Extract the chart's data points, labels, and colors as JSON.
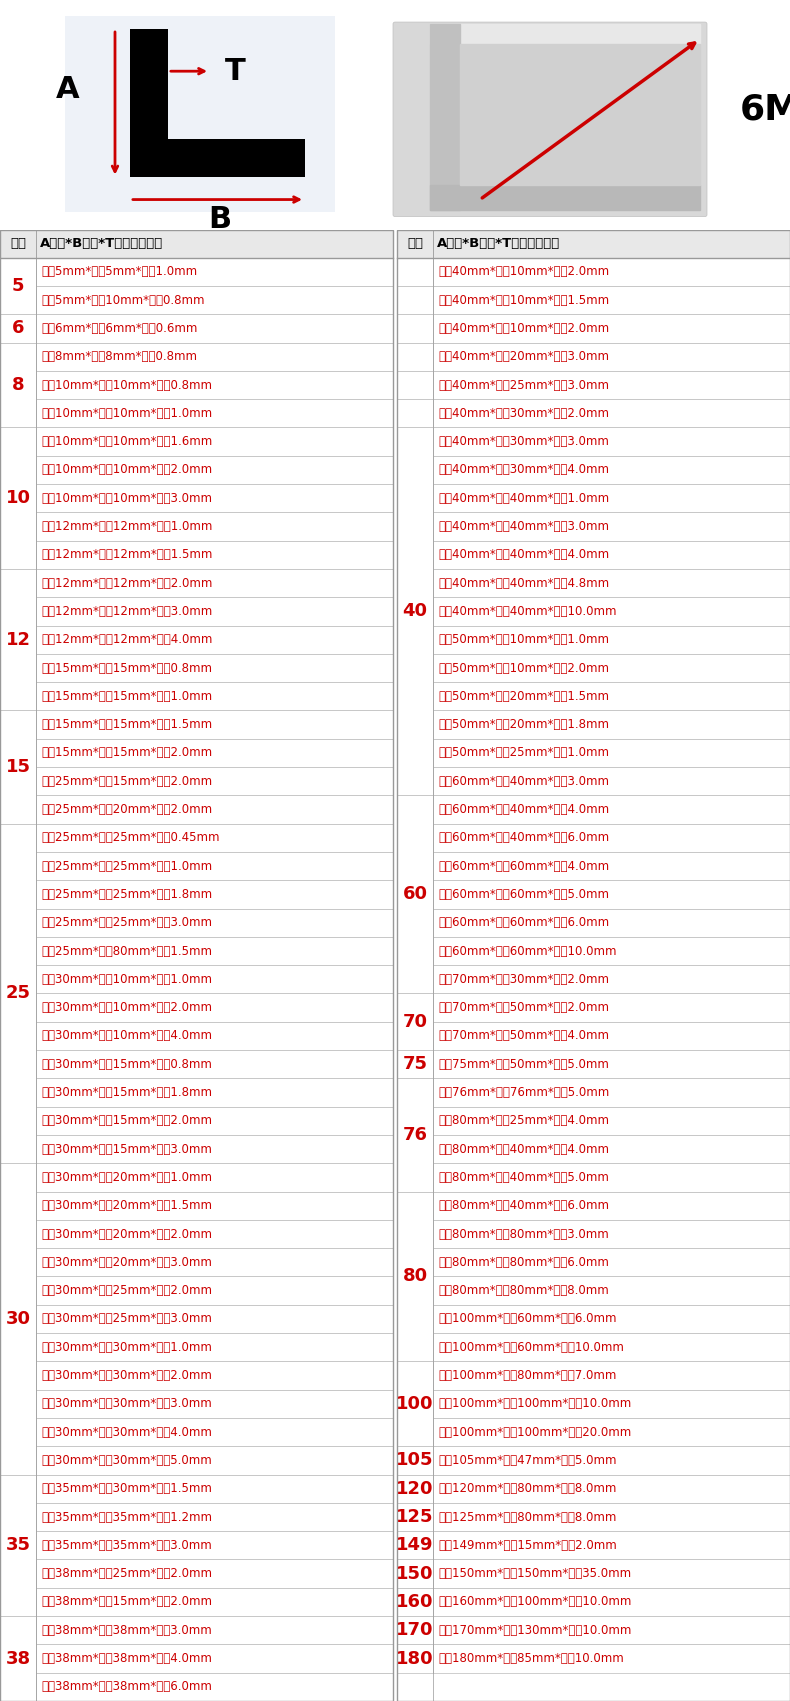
{
  "header_col1": "规格",
  "header_col2": "A边长*B边长*T壁厚（毫米）",
  "header_col3": "规格",
  "header_col4": "A边长*B边长*T壁厚（毫米）",
  "left_table": [
    [
      "5",
      "边长5mm*边长5mm*壁厚1.0mm"
    ],
    [
      "",
      "边长5mm*边长10mm*壁厚0.8mm"
    ],
    [
      "6",
      "边长6mm*边长6mm*壁厚0.6mm"
    ],
    [
      "8",
      "边长8mm*边长8mm*壁厚0.8mm"
    ],
    [
      "",
      "边长10mm*边长10mm*壁厚0.8mm"
    ],
    [
      "",
      "边长10mm*边长10mm*壁厚1.0mm"
    ],
    [
      "10",
      "边长10mm*边长10mm*壁厚1.6mm"
    ],
    [
      "",
      "边长10mm*边长10mm*壁厚2.0mm"
    ],
    [
      "",
      "边长10mm*边长10mm*壁厚3.0mm"
    ],
    [
      "",
      "边长12mm*边长12mm*壁厚1.0mm"
    ],
    [
      "",
      "边长12mm*边长12mm*壁厚1.5mm"
    ],
    [
      "12",
      "边长12mm*边长12mm*壁厚2.0mm"
    ],
    [
      "",
      "边长12mm*边长12mm*壁厚3.0mm"
    ],
    [
      "",
      "边长12mm*边长12mm*壁厚4.0mm"
    ],
    [
      "",
      "边长15mm*边长15mm*壁厚0.8mm"
    ],
    [
      "",
      "边长15mm*边长15mm*壁厚1.0mm"
    ],
    [
      "15",
      "边长15mm*边长15mm*壁厚1.5mm"
    ],
    [
      "",
      "边长15mm*边长15mm*壁厚2.0mm"
    ],
    [
      "",
      "边长25mm*边长15mm*壁厚2.0mm"
    ],
    [
      "",
      "边长25mm*边长20mm*壁厚2.0mm"
    ],
    [
      "25",
      "边长25mm*边长25mm*壁厚0.45mm"
    ],
    [
      "",
      "边长25mm*边长25mm*壁厚1.0mm"
    ],
    [
      "",
      "边长25mm*边长25mm*壁厚1.8mm"
    ],
    [
      "",
      "边长25mm*边长25mm*壁厚3.0mm"
    ],
    [
      "",
      "边长25mm*边长80mm*壁厚1.5mm"
    ],
    [
      "",
      "边长30mm*边长10mm*壁厚1.0mm"
    ],
    [
      "",
      "边长30mm*边长10mm*壁厚2.0mm"
    ],
    [
      "",
      "边长30mm*边长10mm*壁厚4.0mm"
    ],
    [
      "",
      "边长30mm*边长15mm*壁厚0.8mm"
    ],
    [
      "",
      "边长30mm*边长15mm*壁厚1.8mm"
    ],
    [
      "",
      "边长30mm*边长15mm*壁厚2.0mm"
    ],
    [
      "",
      "边长30mm*边长15mm*壁厚3.0mm"
    ],
    [
      "30",
      "边长30mm*边长20mm*壁厚1.0mm"
    ],
    [
      "",
      "边长30mm*边长20mm*壁厚1.5mm"
    ],
    [
      "",
      "边长30mm*边长20mm*壁厚2.0mm"
    ],
    [
      "",
      "边长30mm*边长20mm*壁厚3.0mm"
    ],
    [
      "",
      "边长30mm*边长25mm*壁厚2.0mm"
    ],
    [
      "",
      "边长30mm*边长25mm*壁厚3.0mm"
    ],
    [
      "",
      "边长30mm*边长30mm*壁厚1.0mm"
    ],
    [
      "",
      "边长30mm*边长30mm*壁厚2.0mm"
    ],
    [
      "",
      "边长30mm*边长30mm*壁厚3.0mm"
    ],
    [
      "",
      "边长30mm*边长30mm*壁厚4.0mm"
    ],
    [
      "",
      "边长30mm*边长30mm*壁厚5.0mm"
    ],
    [
      "35",
      "边长35mm*边长30mm*壁厚1.5mm"
    ],
    [
      "",
      "边长35mm*边长35mm*壁厚1.2mm"
    ],
    [
      "",
      "边长35mm*边长35mm*壁厚3.0mm"
    ],
    [
      "",
      "边长38mm*边长25mm*壁厚2.0mm"
    ],
    [
      "",
      "边长38mm*边长15mm*壁厚2.0mm"
    ],
    [
      "38",
      "边长38mm*边长38mm*壁厚3.0mm"
    ],
    [
      "",
      "边长38mm*边长38mm*壁厚4.0mm"
    ],
    [
      "",
      "边长38mm*边长38mm*壁厚6.0mm"
    ]
  ],
  "right_table": [
    [
      "",
      "边长40mm*边长10mm*壁厚2.0mm"
    ],
    [
      "",
      "边长40mm*边长10mm*壁厚1.5mm"
    ],
    [
      "",
      "边长40mm*边长10mm*壁厚2.0mm"
    ],
    [
      "",
      "边长40mm*边长20mm*壁厚3.0mm"
    ],
    [
      "",
      "边长40mm*边长25mm*壁厚3.0mm"
    ],
    [
      "",
      "边长40mm*边长30mm*壁厚2.0mm"
    ],
    [
      "40",
      "边长40mm*边长30mm*壁厚3.0mm"
    ],
    [
      "",
      "边长40mm*边长30mm*壁厚4.0mm"
    ],
    [
      "",
      "边长40mm*边长40mm*壁厚1.0mm"
    ],
    [
      "",
      "边长40mm*边长40mm*壁厚3.0mm"
    ],
    [
      "",
      "边长40mm*边长40mm*壁厚4.0mm"
    ],
    [
      "",
      "边长40mm*边长40mm*壁厚4.8mm"
    ],
    [
      "",
      "边长40mm*边长40mm*壁厚10.0mm"
    ],
    [
      "",
      "边长50mm*边长10mm*壁厚1.0mm"
    ],
    [
      "",
      "边长50mm*边长10mm*壁厚2.0mm"
    ],
    [
      "",
      "边长50mm*边长20mm*壁厚1.5mm"
    ],
    [
      "",
      "边长50mm*边长20mm*壁厚1.8mm"
    ],
    [
      "",
      "边长50mm*边长25mm*壁厚1.0mm"
    ],
    [
      "",
      "边长60mm*边长40mm*壁厚3.0mm"
    ],
    [
      "60",
      "边长60mm*边长40mm*壁厚4.0mm"
    ],
    [
      "",
      "边长60mm*边长40mm*壁厚6.0mm"
    ],
    [
      "",
      "边长60mm*边长60mm*壁厚4.0mm"
    ],
    [
      "",
      "边长60mm*边长60mm*壁厚5.0mm"
    ],
    [
      "",
      "边长60mm*边长60mm*壁厚6.0mm"
    ],
    [
      "",
      "边长60mm*边长60mm*壁厚10.0mm"
    ],
    [
      "",
      "边长70mm*边长30mm*壁厚2.0mm"
    ],
    [
      "70",
      "边长70mm*边长50mm*壁厚2.0mm"
    ],
    [
      "",
      "边长70mm*边长50mm*壁厚4.0mm"
    ],
    [
      "75",
      "边长75mm*边长50mm*壁厚5.0mm"
    ],
    [
      "76",
      "边长76mm*边长76mm*壁厚5.0mm"
    ],
    [
      "",
      "边长80mm*边长25mm*壁厚4.0mm"
    ],
    [
      "",
      "边长80mm*边长40mm*壁厚4.0mm"
    ],
    [
      "",
      "边长80mm*边长40mm*壁厚5.0mm"
    ],
    [
      "80",
      "边长80mm*边长40mm*壁厚6.0mm"
    ],
    [
      "",
      "边长80mm*边长80mm*壁厚3.0mm"
    ],
    [
      "",
      "边长80mm*边长80mm*壁厚6.0mm"
    ],
    [
      "",
      "边长80mm*边长80mm*壁厚8.0mm"
    ],
    [
      "",
      "边长100mm*边长60mm*壁厚6.0mm"
    ],
    [
      "",
      "边长100mm*边长60mm*壁厚10.0mm"
    ],
    [
      "100",
      "边长100mm*边长80mm*壁厚7.0mm"
    ],
    [
      "",
      "边长100mm*边长100mm*壁厚10.0mm"
    ],
    [
      "",
      "边长100mm*边长100mm*壁厚20.0mm"
    ],
    [
      "105",
      "边长105mm*边长47mm*壁厚5.0mm"
    ],
    [
      "120",
      "边长120mm*边长80mm*壁厚8.0mm"
    ],
    [
      "125",
      "边长125mm*边长80mm*壁厚8.0mm"
    ],
    [
      "149",
      "边长149mm*边长15mm*壁厚2.0mm"
    ],
    [
      "150",
      "边长150mm*边长150mm*壁厚35.0mm"
    ],
    [
      "160",
      "边长160mm*边长100mm*壁厚10.0mm"
    ],
    [
      "170",
      "边长170mm*边长130mm*壁厚10.0mm"
    ],
    [
      "180",
      "边长180mm*边长85mm*壁厚10.0mm"
    ]
  ],
  "spec_color": "#cc0000",
  "text_color": "#cc0000",
  "header_text_color": "#000000",
  "border_color": "#bbbbbb",
  "header_bg": "#e8e8e8",
  "diag_bg": "#eef2f8",
  "header_font_size": 9.5,
  "cell_font_size": 8.5,
  "spec_font_size": 13
}
